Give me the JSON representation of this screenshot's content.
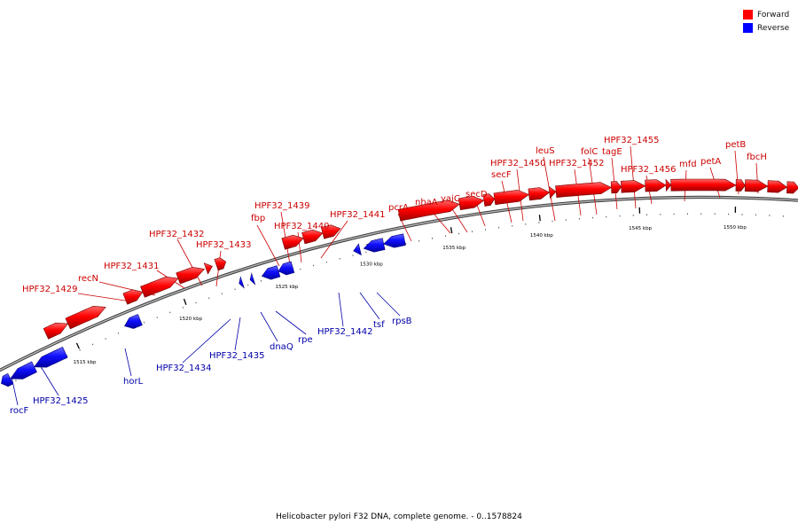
{
  "legend": [
    {
      "label": "Forward",
      "color": "#ff0000"
    },
    {
      "label": "Reverse",
      "color": "#0000ff"
    }
  ],
  "caption": "Helicobacter pylori F32 DNA, complete genome. - 0..1578824",
  "ticks": [
    "1515 kbp",
    "1520 kbp",
    "1525 kbp",
    "1530 kbp",
    "1535 kbp",
    "1540 kbp",
    "1545 kbp",
    "1550 kbp"
  ],
  "forward_labels": [
    "HPF32_1429",
    "recN",
    "HPF32_1431",
    "HPF32_1432",
    "HPF32_1433",
    "fbp",
    "HPF32_1439",
    "HPF32_1440",
    "HPF32_1441",
    "pcrA",
    "nhaA",
    "yajC",
    "secD",
    "secF",
    "HPF32_1450",
    "leuS",
    "HPF32_1452",
    "folC",
    "tagE",
    "HPF32_1455",
    "HPF32_1456",
    "mfd",
    "petA",
    "petB",
    "fbcH"
  ],
  "reverse_labels": [
    "rocF",
    "HPF32_1425",
    "horL",
    "HPF32_1434",
    "HPF32_1435",
    "dnaQ",
    "rpe",
    "HPF32_1442",
    "tsf",
    "rpsB"
  ],
  "colors": {
    "forward": "#ff0000",
    "reverse": "#0000ff",
    "forward_label": "#cc0000",
    "reverse_label": "#0000aa",
    "backbone": "#808080"
  }
}
